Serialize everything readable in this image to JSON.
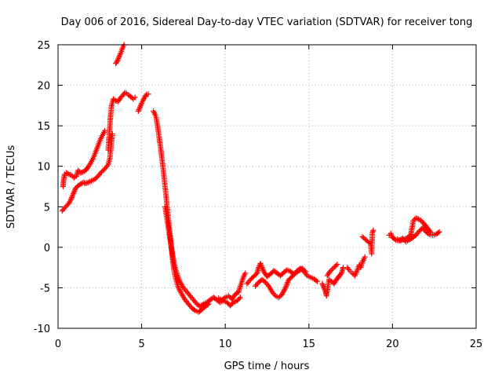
{
  "chart_data": {
    "type": "scatter",
    "title": "Day 006 of 2016, Sidereal Day-to-day VTEC variation (SDTVAR) for receiver tong",
    "xlabel": "GPS time / hours",
    "ylabel": "SDTVAR / TECUs",
    "xlim": [
      0,
      25
    ],
    "ylim": [
      -10,
      25
    ],
    "xticks": [
      0,
      5,
      10,
      15,
      20,
      25
    ],
    "yticks": [
      -10,
      -5,
      0,
      5,
      10,
      15,
      20,
      25
    ],
    "x_tick_labels": [
      "0",
      "5",
      "10",
      "15",
      "20",
      "25"
    ],
    "y_tick_labels": [
      "-10",
      "-5",
      "0",
      "5",
      "10",
      "15",
      "20",
      "25"
    ],
    "grid": true,
    "marker": "+",
    "color": "#ff0000",
    "series": [
      {
        "name": "SDTVAR",
        "segments": [
          [
            [
              0.25,
              4.5
            ],
            [
              0.45,
              5.0
            ],
            [
              0.6,
              5.3
            ],
            [
              0.75,
              5.8
            ],
            [
              0.85,
              6.3
            ],
            [
              0.95,
              6.8
            ],
            [
              1.05,
              7.3
            ],
            [
              1.2,
              7.6
            ],
            [
              1.35,
              7.8
            ],
            [
              1.5,
              8.0
            ],
            [
              1.65,
              7.9
            ],
            [
              1.8,
              8.0
            ],
            [
              2.0,
              8.2
            ],
            [
              2.2,
              8.4
            ],
            [
              2.4,
              8.8
            ],
            [
              2.6,
              9.3
            ],
            [
              2.8,
              9.7
            ],
            [
              3.0,
              10.2
            ],
            [
              3.1,
              11.0
            ],
            [
              3.15,
              12.0
            ],
            [
              3.2,
              13.0
            ],
            [
              3.25,
              14.0
            ]
          ],
          [
            [
              0.3,
              7.5
            ],
            [
              0.32,
              8.0
            ],
            [
              0.35,
              8.5
            ],
            [
              0.4,
              9.0
            ],
            [
              0.5,
              9.2
            ],
            [
              0.65,
              9.0
            ],
            [
              0.8,
              8.9
            ],
            [
              0.95,
              8.6
            ],
            [
              1.1,
              8.8
            ],
            [
              1.2,
              9.5
            ],
            [
              1.35,
              9.2
            ],
            [
              1.5,
              9.3
            ],
            [
              1.65,
              9.5
            ],
            [
              1.8,
              9.9
            ],
            [
              1.95,
              10.4
            ],
            [
              2.1,
              11.0
            ],
            [
              2.25,
              11.8
            ],
            [
              2.4,
              12.6
            ],
            [
              2.55,
              13.4
            ],
            [
              2.7,
              14.0
            ],
            [
              2.8,
              14.4
            ]
          ],
          [
            [
              3.0,
              12.0
            ],
            [
              3.05,
              13.5
            ],
            [
              3.1,
              15.0
            ],
            [
              3.15,
              16.5
            ],
            [
              3.2,
              17.5
            ],
            [
              3.3,
              18.3
            ],
            [
              3.45,
              18.1
            ],
            [
              3.6,
              18.0
            ],
            [
              3.75,
              18.5
            ],
            [
              3.9,
              18.8
            ],
            [
              4.0,
              19.1
            ],
            [
              4.1,
              19.0
            ],
            [
              4.2,
              18.8
            ],
            [
              4.35,
              18.6
            ],
            [
              4.5,
              18.3
            ],
            [
              4.6,
              18.5
            ]
          ],
          [
            [
              3.45,
              22.7
            ],
            [
              3.55,
              23.0
            ],
            [
              3.65,
              23.5
            ],
            [
              3.75,
              24.0
            ],
            [
              3.85,
              24.6
            ],
            [
              3.95,
              25.0
            ]
          ],
          [
            [
              4.8,
              16.8
            ],
            [
              4.9,
              17.3
            ],
            [
              5.0,
              17.8
            ],
            [
              5.1,
              18.2
            ],
            [
              5.2,
              18.6
            ],
            [
              5.3,
              18.9
            ],
            [
              5.4,
              18.9
            ]
          ],
          [
            [
              5.7,
              16.8
            ],
            [
              5.85,
              16.2
            ],
            [
              5.95,
              15.0
            ],
            [
              6.05,
              13.5
            ],
            [
              6.15,
              12.0
            ],
            [
              6.25,
              10.3
            ],
            [
              6.35,
              8.5
            ],
            [
              6.45,
              6.5
            ],
            [
              6.55,
              4.5
            ],
            [
              6.65,
              2.5
            ],
            [
              6.75,
              0.5
            ],
            [
              6.85,
              -1.5
            ],
            [
              6.95,
              -3.0
            ],
            [
              7.05,
              -4.0
            ],
            [
              7.2,
              -5.0
            ],
            [
              7.4,
              -5.8
            ],
            [
              7.6,
              -6.5
            ],
            [
              7.8,
              -7.0
            ],
            [
              8.0,
              -7.5
            ],
            [
              8.2,
              -7.8
            ],
            [
              8.4,
              -8.0
            ],
            [
              8.6,
              -7.7
            ],
            [
              8.8,
              -7.3
            ],
            [
              9.0,
              -7.0
            ]
          ],
          [
            [
              6.4,
              5.0
            ],
            [
              6.55,
              3.0
            ],
            [
              6.7,
              1.0
            ],
            [
              6.85,
              -1.0
            ],
            [
              7.0,
              -2.5
            ],
            [
              7.15,
              -3.5
            ],
            [
              7.3,
              -4.3
            ],
            [
              7.5,
              -5.0
            ],
            [
              7.7,
              -5.5
            ],
            [
              7.9,
              -6.0
            ],
            [
              8.1,
              -6.5
            ],
            [
              8.3,
              -7.0
            ],
            [
              8.5,
              -7.3
            ],
            [
              8.7,
              -7.0
            ],
            [
              8.9,
              -6.8
            ],
            [
              9.1,
              -6.5
            ],
            [
              9.3,
              -6.2
            ],
            [
              9.5,
              -6.5
            ],
            [
              9.7,
              -6.8
            ],
            [
              9.9,
              -6.6
            ],
            [
              10.1,
              -6.8
            ],
            [
              10.3,
              -7.2
            ],
            [
              10.5,
              -6.8
            ],
            [
              10.7,
              -6.6
            ],
            [
              10.9,
              -6.2
            ]
          ],
          [
            [
              9.6,
              -6.3
            ],
            [
              9.8,
              -6.5
            ],
            [
              10.0,
              -6.2
            ],
            [
              10.2,
              -6.0
            ],
            [
              10.4,
              -6.4
            ],
            [
              10.6,
              -5.8
            ],
            [
              10.8,
              -5.5
            ],
            [
              10.9,
              -4.8
            ],
            [
              11.0,
              -4.2
            ],
            [
              11.1,
              -3.6
            ],
            [
              11.2,
              -3.2
            ]
          ],
          [
            [
              11.3,
              -4.5
            ],
            [
              11.5,
              -4.0
            ],
            [
              11.7,
              -3.6
            ],
            [
              11.9,
              -3.2
            ],
            [
              12.0,
              -2.5
            ],
            [
              12.1,
              -2.0
            ],
            [
              12.3,
              -3.0
            ],
            [
              12.5,
              -3.6
            ],
            [
              12.7,
              -3.3
            ],
            [
              12.9,
              -2.9
            ],
            [
              13.1,
              -3.2
            ],
            [
              13.3,
              -3.5
            ],
            [
              13.5,
              -3.1
            ],
            [
              13.7,
              -2.8
            ],
            [
              13.9,
              -3.0
            ],
            [
              14.1,
              -3.3
            ],
            [
              14.3,
              -2.9
            ],
            [
              14.5,
              -2.6
            ],
            [
              14.7,
              -3.0
            ],
            [
              14.9,
              -3.5
            ],
            [
              15.1,
              -3.7
            ],
            [
              15.3,
              -3.9
            ],
            [
              15.5,
              -4.2
            ]
          ],
          [
            [
              11.8,
              -4.8
            ],
            [
              12.0,
              -4.3
            ],
            [
              12.2,
              -4.0
            ],
            [
              12.4,
              -4.3
            ],
            [
              12.6,
              -4.8
            ],
            [
              12.8,
              -5.5
            ],
            [
              13.0,
              -6.0
            ],
            [
              13.2,
              -6.2
            ],
            [
              13.4,
              -5.8
            ],
            [
              13.6,
              -5.0
            ],
            [
              13.8,
              -4.0
            ],
            [
              14.0,
              -3.6
            ],
            [
              14.2,
              -3.2
            ],
            [
              14.4,
              -2.9
            ],
            [
              14.6,
              -2.6
            ],
            [
              14.8,
              -3.0
            ]
          ],
          [
            [
              15.8,
              -4.5
            ],
            [
              15.9,
              -5.0
            ],
            [
              16.0,
              -5.5
            ],
            [
              16.05,
              -6.0
            ],
            [
              16.2,
              -4.0
            ],
            [
              16.35,
              -4.2
            ],
            [
              16.5,
              -4.5
            ],
            [
              16.65,
              -4.0
            ],
            [
              16.8,
              -3.6
            ],
            [
              16.95,
              -3.2
            ],
            [
              17.05,
              -2.5
            ]
          ],
          [
            [
              16.1,
              -3.5
            ],
            [
              16.25,
              -3.0
            ],
            [
              16.4,
              -2.7
            ],
            [
              16.55,
              -2.4
            ],
            [
              16.7,
              -2.1
            ]
          ],
          [
            [
              17.3,
              -2.5
            ],
            [
              17.4,
              -2.8
            ],
            [
              17.5,
              -3.0
            ],
            [
              17.6,
              -3.2
            ],
            [
              17.75,
              -3.5
            ],
            [
              17.9,
              -2.8
            ],
            [
              18.0,
              -2.2
            ],
            [
              18.1,
              -2.5
            ],
            [
              18.2,
              -1.8
            ],
            [
              18.35,
              -1.2
            ]
          ],
          [
            [
              18.2,
              1.3
            ],
            [
              18.7,
              0.4
            ],
            [
              18.75,
              -0.8
            ],
            [
              18.8,
              1.8
            ],
            [
              18.85,
              2.1
            ]
          ],
          [
            [
              19.8,
              1.5
            ],
            [
              19.9,
              1.7
            ],
            [
              20.0,
              1.2
            ],
            [
              20.2,
              0.9
            ],
            [
              20.4,
              0.8
            ],
            [
              20.6,
              1.1
            ],
            [
              20.8,
              0.7
            ],
            [
              21.0,
              0.9
            ],
            [
              21.2,
              1.2
            ],
            [
              21.4,
              1.5
            ],
            [
              21.6,
              2.0
            ],
            [
              21.8,
              2.4
            ],
            [
              22.0,
              1.9
            ],
            [
              22.2,
              1.6
            ],
            [
              22.4,
              1.5
            ],
            [
              22.6,
              1.6
            ],
            [
              22.8,
              1.9
            ]
          ],
          [
            [
              20.3,
              1.0
            ],
            [
              20.5,
              0.8
            ],
            [
              20.7,
              1.0
            ],
            [
              20.9,
              1.2
            ],
            [
              21.1,
              1.6
            ],
            [
              21.25,
              3.3
            ],
            [
              21.4,
              3.6
            ],
            [
              21.55,
              3.5
            ],
            [
              21.7,
              3.3
            ],
            [
              21.85,
              3.0
            ],
            [
              22.0,
              2.6
            ],
            [
              22.15,
              2.2
            ],
            [
              22.3,
              1.8
            ]
          ]
        ]
      }
    ]
  }
}
